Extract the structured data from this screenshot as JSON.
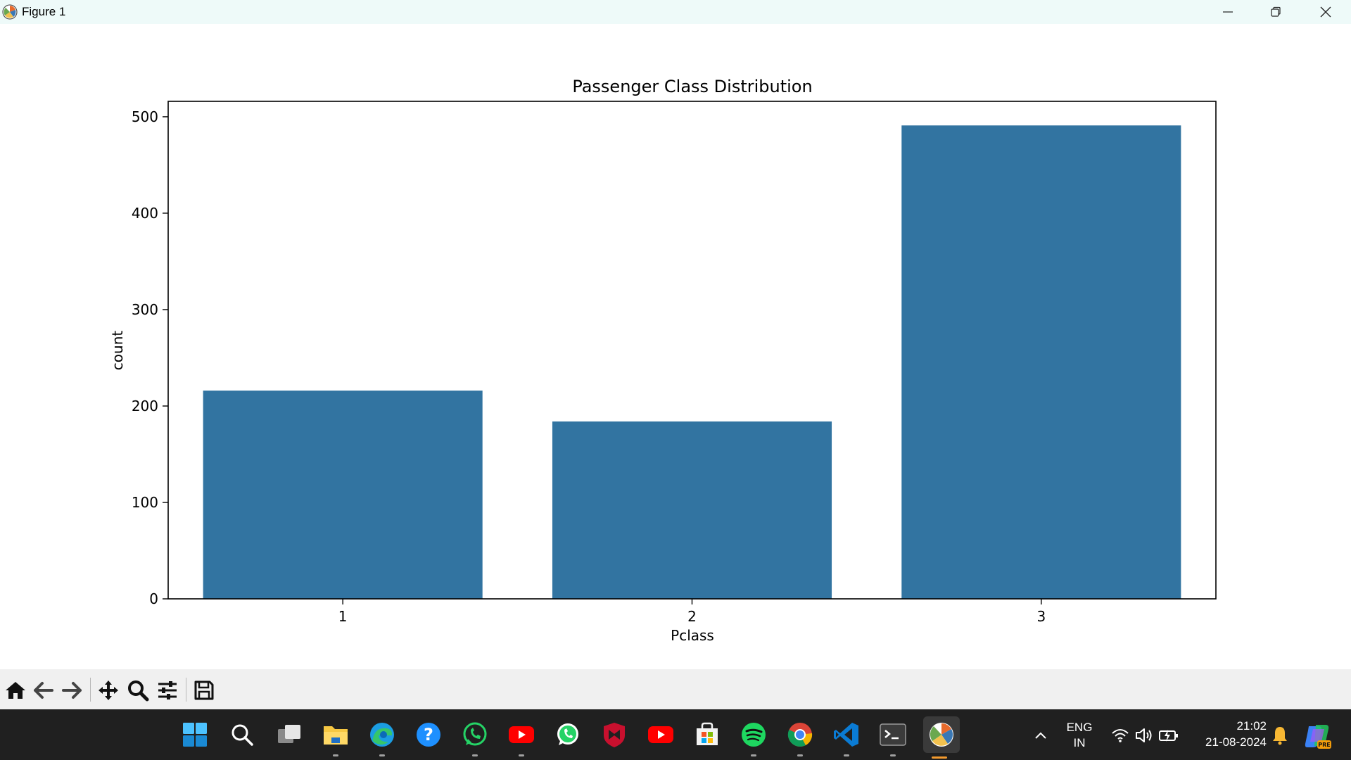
{
  "window": {
    "title": "Figure 1"
  },
  "chart_data": {
    "type": "bar",
    "title": "Passenger Class Distribution",
    "xlabel": "Pclass",
    "ylabel": "count",
    "categories": [
      "1",
      "2",
      "3"
    ],
    "values": [
      216,
      184,
      491
    ],
    "ylim": [
      0,
      516
    ],
    "yticks": [
      "0",
      "100",
      "200",
      "300",
      "400",
      "500"
    ],
    "grid": false,
    "legend": "none",
    "bar_color": "#3274a1"
  },
  "toolbar": {
    "icons": [
      "home-icon",
      "back-arrow-icon",
      "forward-arrow-icon",
      "pan-icon",
      "zoom-icon",
      "configure-subplots-icon",
      "save-icon"
    ]
  },
  "taskbar": {
    "apps": [
      "windows-start-icon",
      "search-icon",
      "task-view-icon",
      "file-explorer-icon",
      "edge-icon",
      "help-icon",
      "whatsapp-icon",
      "youtube-icon",
      "whatsapp-icon",
      "mcafee-icon",
      "youtube-icon",
      "microsoft-store-icon",
      "spotify-icon",
      "chrome-icon",
      "vscode-icon",
      "terminal-icon",
      "matplotlib-icon"
    ],
    "tray": {
      "lang_top": "ENG",
      "lang_bottom": "IN",
      "time": "21:02",
      "date": "21-08-2024"
    }
  }
}
